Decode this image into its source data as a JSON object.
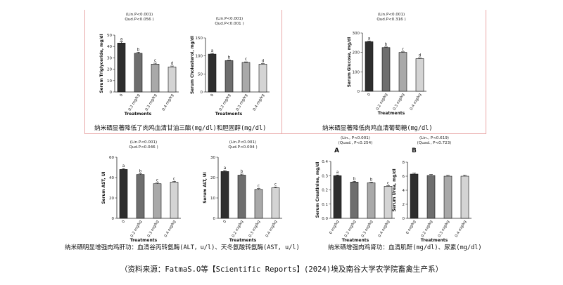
{
  "colors": {
    "divider": "#e9a8a8",
    "axis": "#222222",
    "bar_dark": "#2e2e2e",
    "bar_mid": "#6e6e6e",
    "bar_light1": "#a9a9a9",
    "bar_light2": "#d4d4d4"
  },
  "captions": {
    "top_left": "纳米硒显著降低了肉鸡血清甘油三酯(mg/dl)和胆固醇(mg/dl)",
    "top_right": "纳米硒显著降低肉鸡血清葡萄糖(mg/dl)",
    "bottom_left": "纳米硒明显增强肉鸡肝功：血清谷丙转氨酶(ALT，u/l)、天冬氨酸转氨酶(AST, u/l)",
    "bottom_right": "纳米硒增强肉鸡肾功：血清肌酐(mg/dl)、尿素(mg/dl)"
  },
  "source": "（资料来源：FatmaS.O等【Scientific Reports】(2024)埃及南谷大学农学院畜禽生产系）",
  "chart_data": [
    {
      "id": "triglyceride",
      "type": "bar",
      "ylabel": "Serum Triglyceride, mg/dl",
      "xlabel": "Treatments",
      "stats": [
        "(Lin.P<0.001)",
        "Qud.P<0.056 )"
      ],
      "categories": [
        "0",
        "0.2 mg/kg",
        "0.3 mg/kg",
        "0.4 mg/kg"
      ],
      "values": [
        43,
        34,
        24.5,
        22
      ],
      "errors": [
        1.2,
        1.0,
        0.8,
        0.8
      ],
      "letters": [
        "a",
        "b",
        "c",
        "d"
      ],
      "ylim": [
        0,
        50
      ],
      "yticks": [
        0,
        10,
        20,
        30,
        40,
        50
      ]
    },
    {
      "id": "cholesterol",
      "type": "bar",
      "ylabel": "Serum Cholesterol, mg/dl",
      "xlabel": "Treatments",
      "stats": [
        "(Lin.P<0.001)",
        "Qud.P<0.001 )"
      ],
      "categories": [
        "0",
        "0.2 mg/kg",
        "0.3 mg/kg",
        "0.4 mg/kg"
      ],
      "values": [
        105,
        87,
        82,
        77
      ],
      "errors": [
        2,
        1.5,
        1.5,
        1.5
      ],
      "letters": [
        "a",
        "b",
        "c",
        "d"
      ],
      "ylim": [
        0,
        150
      ],
      "yticks": [
        0,
        50,
        100,
        150
      ]
    },
    {
      "id": "glucose",
      "type": "bar",
      "ylabel": "Serum Glucose, mg/dl",
      "xlabel": "Treatments",
      "stats": [
        "(Lin.P<0.001)",
        "Qud.P<0.316 )"
      ],
      "categories": [
        "0",
        "0.2 mg/kg",
        "0.3 mg/kg",
        "0.4 mg/kg"
      ],
      "values": [
        255,
        225,
        200,
        168
      ],
      "errors": [
        4,
        3,
        3,
        3
      ],
      "letters": [
        "a",
        "b",
        "c",
        "d"
      ],
      "ylim": [
        0,
        300
      ],
      "yticks": [
        0,
        100,
        200,
        300
      ]
    },
    {
      "id": "ast",
      "type": "bar",
      "ylabel": "Serum AST, UI",
      "xlabel": "Treatments",
      "stats": [
        "(Lin.P<0.001)",
        "Qud.P<0.046 )"
      ],
      "categories": [
        "0",
        "0.2 mg/kg",
        "0.3 mg/kg",
        "0.4 mg/kg"
      ],
      "values": [
        48,
        43,
        34,
        35.5
      ],
      "errors": [
        0.8,
        0.8,
        0.8,
        0.8
      ],
      "letters": [
        "a",
        "b",
        "c",
        "c"
      ],
      "ylim": [
        0,
        60
      ],
      "yticks": [
        0,
        20,
        40,
        60
      ]
    },
    {
      "id": "alt",
      "type": "bar",
      "ylabel": "Serum ALT, UI",
      "xlabel": "Treatments",
      "stats": [
        "(Lin.P<0.001)",
        "Qud.P<0.004 )"
      ],
      "categories": [
        "0",
        "0.2 mg/kg",
        "0.3 mg/kg",
        "0.4 mg/kg"
      ],
      "values": [
        23,
        21.2,
        14.2,
        15
      ],
      "errors": [
        0.5,
        0.5,
        0.4,
        0.4
      ],
      "letters": [
        "a",
        "b",
        "c",
        "c"
      ],
      "ylim": [
        0,
        30
      ],
      "yticks": [
        0,
        10,
        20,
        30
      ]
    },
    {
      "id": "creatinine",
      "type": "bar",
      "panel_label": "A",
      "ylabel": "Serum Creatinine, mg/dl",
      "xlabel": "Treatments",
      "stats": [
        "(Lin., P<0.001)",
        "(Quad., P<0.254)"
      ],
      "categories": [
        "0 mg/kg",
        "0.2 mg/kg",
        "0.3 mg/kg",
        "0.4 mg/kg"
      ],
      "values": [
        0.3,
        0.255,
        0.25,
        0.225
      ],
      "errors": [
        0.005,
        0.005,
        0.005,
        0.005
      ],
      "letters": [
        "a",
        "b",
        "b",
        "c"
      ],
      "ylim": [
        0,
        0.4
      ],
      "yticks": [
        0.0,
        0.1,
        0.2,
        0.3,
        0.4
      ]
    },
    {
      "id": "urea",
      "type": "bar",
      "panel_label": "B",
      "ylabel": "Serum Urea, mg/dl",
      "xlabel": "Treatments",
      "stats": [
        "(Lin., P<0.619)",
        "(Quad., P<0.723)"
      ],
      "categories": [
        "0 mg/kg",
        "0.2 mg/kg",
        "0.3 mg/kg",
        "0.4 mg/kg"
      ],
      "values": [
        6.3,
        6.1,
        6.0,
        6.0
      ],
      "errors": [
        0.15,
        0.15,
        0.15,
        0.15
      ],
      "letters": [],
      "ylim": [
        0,
        8
      ],
      "yticks": [
        0,
        2,
        4,
        6,
        8
      ]
    }
  ]
}
